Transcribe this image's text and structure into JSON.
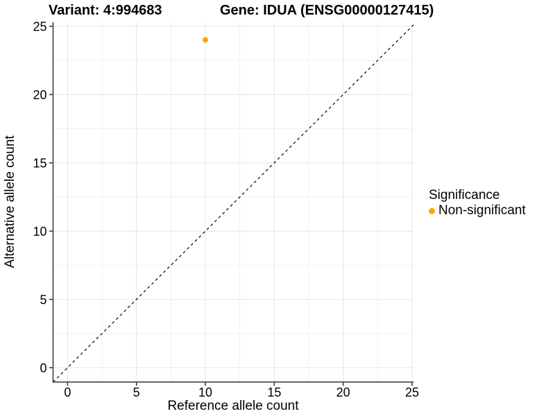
{
  "chart_data": {
    "type": "scatter",
    "title_left": "Variant: 4:994683",
    "title_right": "Gene: IDUA (ENSG00000127415)",
    "xlabel": "Reference allele count",
    "ylabel": "Alternative allele count",
    "xlim": [
      -1.05,
      25.1
    ],
    "ylim": [
      -1.05,
      25.3
    ],
    "x_ticks": [
      0,
      5,
      10,
      15,
      20,
      25
    ],
    "y_ticks": [
      0,
      5,
      10,
      15,
      20,
      25
    ],
    "minor_ticks": [
      2.5,
      7.5,
      12.5,
      17.5,
      22.5
    ],
    "grid": true,
    "identity_line": {
      "style": "dashed",
      "color": "#000000",
      "from": [
        -1.05,
        -1.05
      ],
      "to": [
        25.1,
        25.1
      ]
    },
    "series": [
      {
        "name": "Non-significant",
        "color": "#FFA500",
        "points": [
          {
            "x": 10,
            "y": 24
          }
        ]
      }
    ],
    "legend": {
      "title": "Significance",
      "position": "right",
      "items": [
        {
          "label": "Non-significant",
          "color": "#FFA500"
        }
      ]
    }
  },
  "colors": {
    "background": "#FFFFFF",
    "grid_major": "#E4E4E4",
    "grid_minor": "#F0F0F0",
    "axis": "#333333",
    "text": "#000000",
    "point": "#FFA500"
  }
}
